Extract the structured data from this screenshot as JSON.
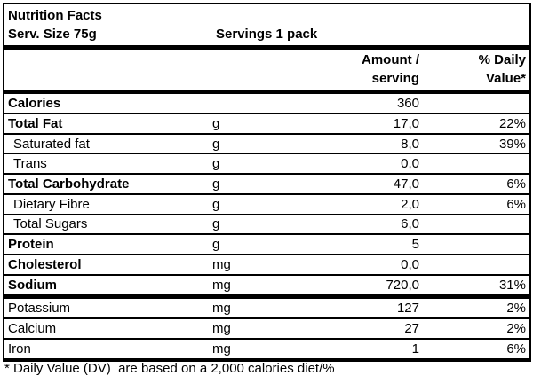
{
  "header": {
    "title": "Nutrition Facts",
    "serving_size": "Serv. Size 75g",
    "servings": "Servings 1 pack",
    "col_amount_line1": "Amount /",
    "col_amount_line2": "serving",
    "col_dv_line1": "% Daily",
    "col_dv_line2": "Value*"
  },
  "rows": [
    {
      "label": "Calories",
      "unit": "",
      "amount": "360",
      "dv": ""
    },
    {
      "label": "Total Fat",
      "unit": "g",
      "amount": "17,0",
      "dv": "22%"
    },
    {
      "label": "Saturated fat",
      "unit": "g",
      "amount": "8,0",
      "dv": "39%"
    },
    {
      "label": "Trans",
      "unit": "g",
      "amount": "0,0",
      "dv": ""
    },
    {
      "label": "Total Carbohydrate",
      "unit": "g",
      "amount": "47,0",
      "dv": "6%"
    },
    {
      "label": "Dietary Fibre",
      "unit": "g",
      "amount": "2,0",
      "dv": "6%"
    },
    {
      "label": "Total Sugars",
      "unit": "g",
      "amount": "6,0",
      "dv": ""
    },
    {
      "label": "Protein",
      "unit": "g",
      "amount": "5",
      "dv": ""
    },
    {
      "label": "Cholesterol",
      "unit": "mg",
      "amount": "0,0",
      "dv": ""
    },
    {
      "label": "Sodium",
      "unit": "mg",
      "amount": "720,0",
      "dv": "31%"
    },
    {
      "label": "Potassium",
      "unit": "mg",
      "amount": "127",
      "dv": "2%"
    },
    {
      "label": "Calcium",
      "unit": "mg",
      "amount": "27",
      "dv": "2%"
    },
    {
      "label": "Iron",
      "unit": "mg",
      "amount": "1",
      "dv": "6%"
    }
  ],
  "footer": {
    "note": "* Daily Value (DV)  are based on a 2,000 calories diet/%"
  },
  "colors": {
    "text": "#000000",
    "background": "#ffffff",
    "border": "#000000"
  }
}
